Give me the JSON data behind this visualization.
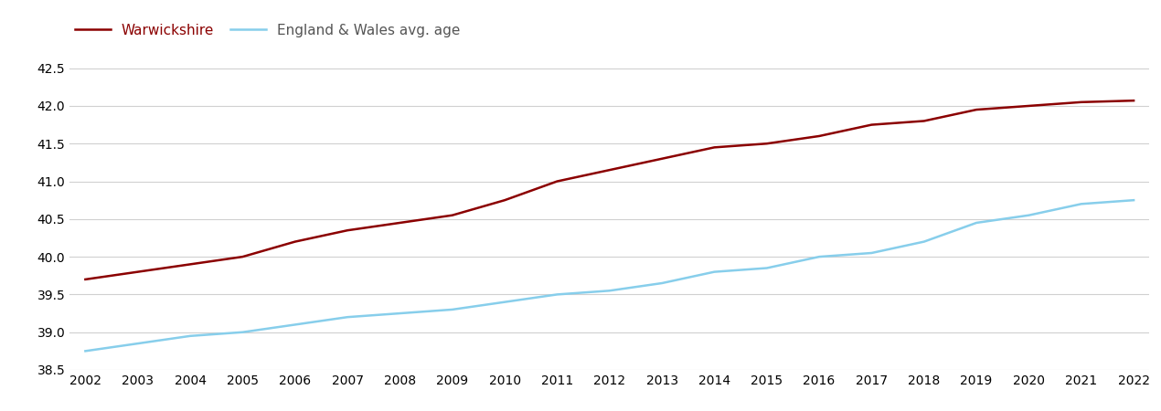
{
  "years": [
    2002,
    2003,
    2004,
    2005,
    2006,
    2007,
    2008,
    2009,
    2010,
    2011,
    2012,
    2013,
    2014,
    2015,
    2016,
    2017,
    2018,
    2019,
    2020,
    2021,
    2022
  ],
  "warwickshire": [
    39.7,
    39.8,
    39.9,
    40.0,
    40.2,
    40.35,
    40.45,
    40.55,
    40.75,
    41.0,
    41.15,
    41.3,
    41.45,
    41.5,
    41.6,
    41.75,
    41.8,
    41.95,
    42.0,
    42.05,
    42.07
  ],
  "england_wales": [
    38.75,
    38.85,
    38.95,
    39.0,
    39.1,
    39.2,
    39.25,
    39.3,
    39.4,
    39.5,
    39.55,
    39.65,
    39.8,
    39.85,
    40.0,
    40.05,
    40.2,
    40.45,
    40.55,
    40.7,
    40.75
  ],
  "warwickshire_color": "#8B0000",
  "england_wales_color": "#87CEEB",
  "background_color": "#ffffff",
  "grid_color": "#d0d0d0",
  "ylim": [
    38.5,
    42.75
  ],
  "yticks": [
    38.5,
    39.0,
    39.5,
    40.0,
    40.5,
    41.0,
    41.5,
    42.0,
    42.5
  ],
  "legend_warwickshire": "Warwickshire",
  "legend_england_wales": "England & Wales avg. age",
  "line_width": 1.8,
  "tick_fontsize": 10,
  "legend_fontsize": 11
}
